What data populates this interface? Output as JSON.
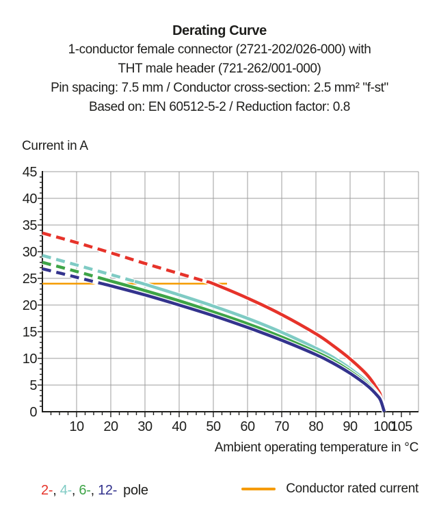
{
  "header": {
    "title": "Derating Curve",
    "line1": "1-conductor female connector (2721-202/026-000) with",
    "line2": "THT male header (721-262/001-000)",
    "line3": "Pin spacing: 7.5 mm / Conductor cross-section: 2.5 mm² \"f-st\"",
    "line4": "Based on: EN 60512-5-2 / Reduction factor: 0.8"
  },
  "chart": {
    "y_axis_title": "Current in A",
    "x_axis_title": "Ambient operating temperature in °C"
  },
  "legend": {
    "pole_items": [
      {
        "label": "2-",
        "color": "#e6332a"
      },
      {
        "label": "4-",
        "color": "#7fcbc4"
      },
      {
        "label": "6-",
        "color": "#3ea447"
      },
      {
        "label": "12-",
        "color": "#33338d"
      }
    ],
    "separator": ", ",
    "pole_suffix": "pole",
    "rated_label": "Conductor rated current",
    "rated_color": "#f59b00"
  },
  "chart_data": {
    "type": "line",
    "title": "Derating Curve",
    "xlabel": "Ambient operating temperature in °C",
    "ylabel": "Current in A",
    "xlim": [
      0,
      110
    ],
    "ylim": [
      0,
      45
    ],
    "grid": true,
    "x_ticks": [
      10,
      20,
      30,
      40,
      50,
      60,
      70,
      80,
      90,
      100,
      105
    ],
    "y_ticks": [
      0,
      5,
      10,
      15,
      20,
      25,
      30,
      35,
      40,
      45
    ],
    "x_grid": [
      10,
      20,
      30,
      40,
      50,
      60,
      70,
      80,
      90,
      100,
      110
    ],
    "y_grid": [
      5,
      10,
      15,
      20,
      25,
      30,
      35,
      40,
      45
    ],
    "rated_current": 24,
    "rated_line_span": [
      0,
      54
    ],
    "rated_color": "#f59b00",
    "grid_color": "#9c9c9c",
    "axis_color": "#1d1d1b",
    "note": "dashed above rated current, solid below; all curves reach 0 A at 100 °C",
    "series": [
      {
        "name": "2-pole",
        "color": "#e6332a",
        "solid_from": 48,
        "x": [
          0,
          10,
          20,
          30,
          40,
          50,
          60,
          70,
          80,
          85,
          90,
          95,
          98,
          99,
          100
        ],
        "values": [
          33.5,
          31.7,
          29.8,
          27.8,
          25.9,
          24.0,
          21.3,
          18.2,
          14.6,
          12.4,
          9.9,
          6.9,
          4.2,
          2.9,
          0
        ]
      },
      {
        "name": "4-pole",
        "color": "#7fcbc4",
        "solid_from": 27,
        "x": [
          0,
          10,
          20,
          30,
          40,
          50,
          60,
          70,
          80,
          85,
          90,
          95,
          98,
          99,
          100
        ],
        "values": [
          29.3,
          27.5,
          25.7,
          23.9,
          21.9,
          19.8,
          17.5,
          14.9,
          11.9,
          10.2,
          8.1,
          5.6,
          3.4,
          2.3,
          0
        ]
      },
      {
        "name": "6-pole",
        "color": "#3ea447",
        "solid_from": 19,
        "x": [
          0,
          10,
          20,
          30,
          40,
          50,
          60,
          70,
          80,
          85,
          90,
          95,
          98,
          99,
          100
        ],
        "values": [
          28.0,
          26.3,
          24.5,
          22.7,
          20.8,
          18.7,
          16.5,
          14.0,
          11.2,
          9.6,
          7.6,
          5.2,
          3.2,
          2.2,
          0
        ]
      },
      {
        "name": "12-pole",
        "color": "#33338d",
        "solid_from": 16.5,
        "x": [
          0,
          10,
          20,
          30,
          40,
          50,
          60,
          70,
          80,
          85,
          90,
          95,
          98,
          99,
          100
        ],
        "values": [
          26.8,
          25.2,
          23.6,
          21.9,
          20.0,
          18.0,
          15.8,
          13.4,
          10.7,
          9.1,
          7.2,
          4.9,
          3.0,
          2.0,
          0
        ]
      }
    ]
  }
}
